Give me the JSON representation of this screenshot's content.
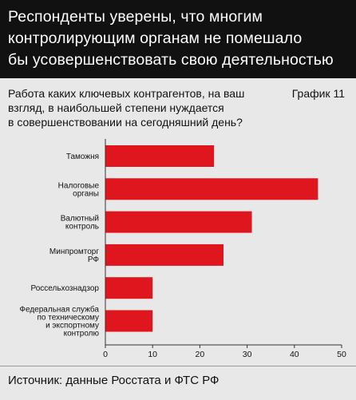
{
  "header": {
    "title_line1": "Респонденты уверены, что многим",
    "title_line2": "контролирующим органам не помешало",
    "title_line3": "бы усовершенствовать свою деятельностью"
  },
  "question": {
    "line1": "Работа каких ключевых контрагентов, на ваш",
    "line2": "взгляд, в наибольшей степени нуждается",
    "line3": "в совершенствовании на сегодняшний день?"
  },
  "graph_label": "График 11",
  "footer": {
    "source": "Источник: данные Росстата и ФТС РФ"
  },
  "colors": {
    "bar": "#e0161e",
    "header_bg": "#111111",
    "panel_bg": "#e8e8e8"
  },
  "chart_data": {
    "type": "bar",
    "orientation": "horizontal",
    "categories": [
      [
        "Таможня"
      ],
      [
        "Налоговые",
        "органы"
      ],
      [
        "Валютный",
        "контроль"
      ],
      [
        "Минпромторг",
        "РФ"
      ],
      [
        "Россельхознадзор"
      ],
      [
        "Федеральная служба",
        "по техническому",
        "и экспортному",
        "контролю"
      ]
    ],
    "values": [
      23,
      45,
      31,
      25,
      10,
      10
    ],
    "xlim": [
      0,
      50
    ],
    "xticks": [
      0,
      10,
      20,
      30,
      40,
      50
    ],
    "grid": false,
    "title": "",
    "xlabel": "",
    "ylabel": ""
  }
}
